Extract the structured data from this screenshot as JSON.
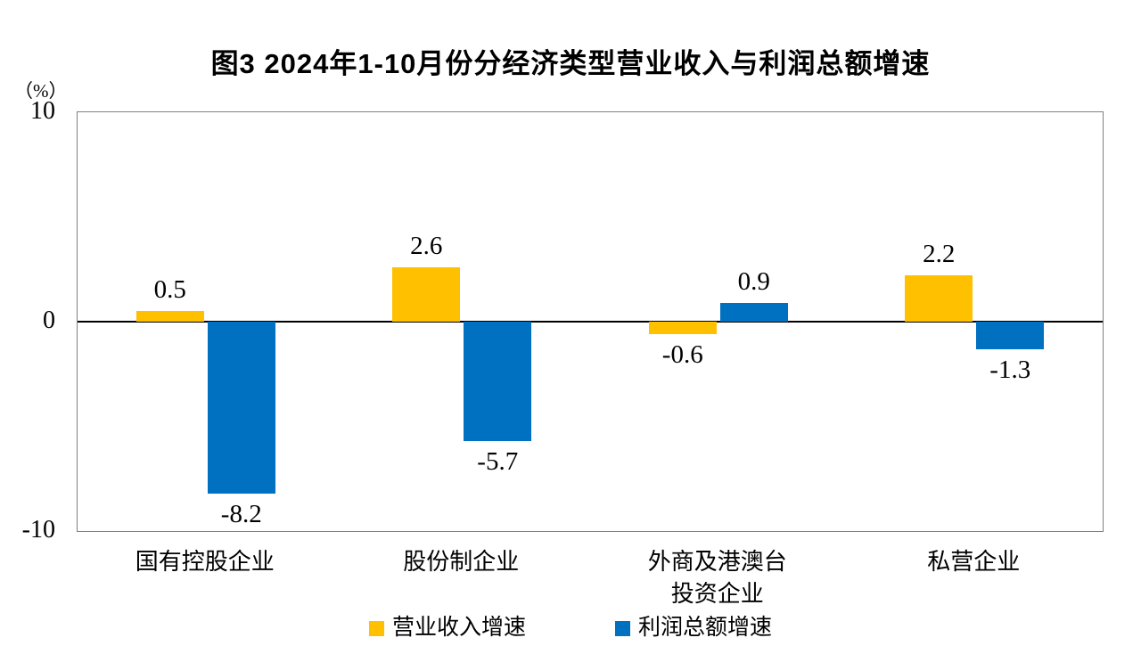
{
  "title": "图3 2024年1-10月份分经济类型营业收入与利润总额增速",
  "y_axis": {
    "unit": "（%）",
    "ticks": [
      "10",
      "0",
      "-10"
    ],
    "max": 10,
    "min": -10
  },
  "legend": [
    {
      "label": "营业收入增速",
      "color": "#FFC000"
    },
    {
      "label": "利润总额增速",
      "color": "#0070C0"
    }
  ],
  "chart_data": {
    "type": "bar",
    "title": "图3 2024年1-10月份分经济类型营业收入与利润总额增速",
    "ylabel": "（%）",
    "ylim": [
      -10,
      10
    ],
    "grid": false,
    "legend_position": "bottom",
    "categories": [
      "国有控股企业",
      "股份制企业",
      "外商及港澳台\n投资企业",
      "私营企业"
    ],
    "series": [
      {
        "name": "营业收入增速",
        "color": "#FFC000",
        "values": [
          0.5,
          2.6,
          -0.6,
          2.2
        ]
      },
      {
        "name": "利润总额增速",
        "color": "#0070C0",
        "values": [
          -8.2,
          -5.7,
          0.9,
          -1.3
        ]
      }
    ]
  }
}
